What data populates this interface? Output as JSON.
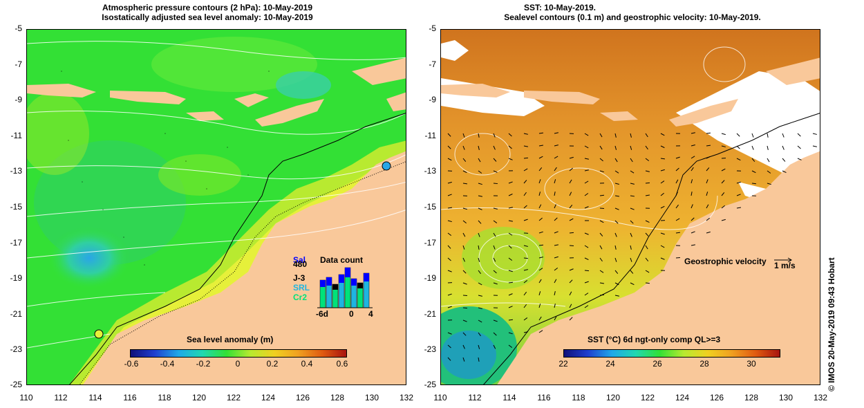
{
  "left": {
    "title_line1": "Atmospheric pressure contours (2 hPa): 10-May-2019",
    "title_line2": "Isostatically adjusted sea level anomaly: 10-May-2019",
    "colorbar_title": "Sea level anomaly (m)",
    "colorbar_ticks": [
      "-0.6",
      "-0.4",
      "-0.2",
      "0",
      "0.2",
      "0.4",
      "0.6"
    ],
    "legend": {
      "title": "Data count",
      "labels": [
        "Sal",
        "480",
        "J-3",
        "SRL",
        "Cr2"
      ],
      "axis_labels": [
        "-6d",
        "0",
        "4"
      ],
      "colors": [
        "#0000ff",
        "#000000",
        "#1fb5e0",
        "#00e27a"
      ]
    }
  },
  "right": {
    "title_line1": "SST: 10-May-2019.",
    "title_line2": "Sealevel contours (0.1 m) and geostrophic velocity: 10-May-2019.",
    "colorbar_title": "SST (°C) 6d ngt-only comp QL>=3",
    "colorbar_ticks": [
      "22",
      "24",
      "26",
      "28",
      "30"
    ],
    "velocity_label": "Geostrophic velocity",
    "velocity_scale": "1 m/s"
  },
  "y_ticks": [
    "-5",
    "-7",
    "-9",
    "-11",
    "-13",
    "-15",
    "-17",
    "-19",
    "-21",
    "-23",
    "-25"
  ],
  "x_ticks": [
    "110",
    "112",
    "114",
    "116",
    "118",
    "120",
    "122",
    "124",
    "126",
    "128",
    "130",
    "132"
  ],
  "credit": "© IMOS 20-May-2019 09:43 Hobart",
  "colors": {
    "land": "#f9c89a",
    "sla_sea": "#33e035",
    "sst_warm": "#e89a2a",
    "cloud": "#ffffff"
  }
}
